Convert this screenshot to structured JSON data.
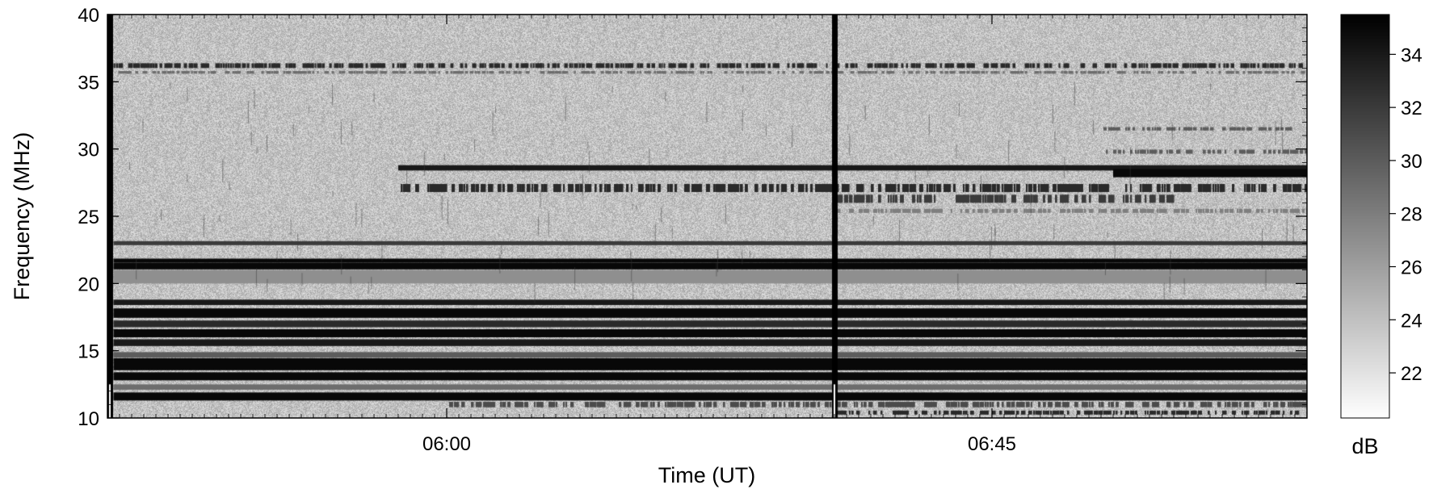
{
  "chart_data": {
    "type": "heatmap",
    "title": "",
    "xlabel": "Time (UT)",
    "ylabel": "Frequency (MHz)",
    "x_ticks": [
      {
        "label": "06:00",
        "minutes": 360
      },
      {
        "label": "06:45",
        "minutes": 405
      }
    ],
    "xlim_minutes": [
      332,
      431
    ],
    "ylim": [
      10,
      40
    ],
    "y_ticks": [
      10,
      15,
      20,
      25,
      30,
      35,
      40
    ],
    "colorbar": {
      "label": "dB",
      "ticks": [
        22,
        24,
        26,
        28,
        30,
        32,
        34
      ],
      "range": [
        20.3,
        35.5
      ],
      "colormap": "white-to-black"
    },
    "background_level_db": 24,
    "vertical_gaps_minutes": [
      332.2,
      392.0
    ],
    "bands": [
      {
        "freq": 36.2,
        "start": 332.5,
        "end": 431,
        "level": 33,
        "width": 0.35,
        "dotted": true
      },
      {
        "freq": 35.7,
        "start": 332.5,
        "end": 431,
        "level": 29,
        "width": 0.2,
        "dotted": true
      },
      {
        "freq": 31.5,
        "start": 414,
        "end": 430,
        "level": 30,
        "width": 0.25,
        "dotted": true
      },
      {
        "freq": 29.8,
        "start": 414,
        "end": 431,
        "level": 30,
        "width": 0.3,
        "dotted": true
      },
      {
        "freq": 28.6,
        "start": 356,
        "end": 431,
        "level": 34,
        "width": 0.4,
        "dotted": false
      },
      {
        "freq": 28.2,
        "start": 415,
        "end": 431,
        "level": 35,
        "width": 0.6,
        "dotted": false
      },
      {
        "freq": 27.1,
        "start": 356,
        "end": 431,
        "level": 33,
        "width": 0.6,
        "dotted": true
      },
      {
        "freq": 26.3,
        "start": 392,
        "end": 420,
        "level": 32,
        "width": 0.6,
        "dotted": true
      },
      {
        "freq": 25.4,
        "start": 392,
        "end": 431,
        "level": 28,
        "width": 0.3,
        "dotted": true
      },
      {
        "freq": 23.0,
        "start": 332.5,
        "end": 431,
        "level": 32,
        "width": 0.3,
        "dotted": false
      },
      {
        "freq": 21.7,
        "start": 332.5,
        "end": 431,
        "level": 35,
        "width": 0.3,
        "dotted": false
      },
      {
        "freq": 21.3,
        "start": 332.5,
        "end": 431,
        "level": 35,
        "width": 0.5,
        "dotted": false
      },
      {
        "freq": 20.5,
        "start": 332.5,
        "end": 431,
        "level": 27,
        "width": 1.0,
        "dotted": false
      },
      {
        "freq": 18.6,
        "start": 332.5,
        "end": 431,
        "level": 34,
        "width": 0.4,
        "dotted": false
      },
      {
        "freq": 17.8,
        "start": 332.5,
        "end": 431,
        "level": 35,
        "width": 0.7,
        "dotted": false
      },
      {
        "freq": 17.0,
        "start": 332.5,
        "end": 431,
        "level": 33,
        "width": 0.5,
        "dotted": false
      },
      {
        "freq": 16.3,
        "start": 332.5,
        "end": 431,
        "level": 35,
        "width": 0.6,
        "dotted": false
      },
      {
        "freq": 15.6,
        "start": 332.5,
        "end": 431,
        "level": 34,
        "width": 0.5,
        "dotted": false
      },
      {
        "freq": 14.7,
        "start": 332.5,
        "end": 431,
        "level": 30,
        "width": 0.4,
        "dotted": false
      },
      {
        "freq": 14.0,
        "start": 332.5,
        "end": 431,
        "level": 35,
        "width": 0.9,
        "dotted": false
      },
      {
        "freq": 13.1,
        "start": 332.5,
        "end": 431,
        "level": 35,
        "width": 0.6,
        "dotted": false
      },
      {
        "freq": 12.3,
        "start": 332.5,
        "end": 431,
        "level": 29,
        "width": 0.4,
        "dotted": false
      },
      {
        "freq": 11.6,
        "start": 332.5,
        "end": 431,
        "level": 35,
        "width": 0.6,
        "dotted": false
      },
      {
        "freq": 11.0,
        "start": 360,
        "end": 431,
        "level": 31,
        "width": 0.4,
        "dotted": true
      },
      {
        "freq": 10.4,
        "start": 392,
        "end": 431,
        "level": 33,
        "width": 0.3,
        "dotted": true
      }
    ]
  }
}
